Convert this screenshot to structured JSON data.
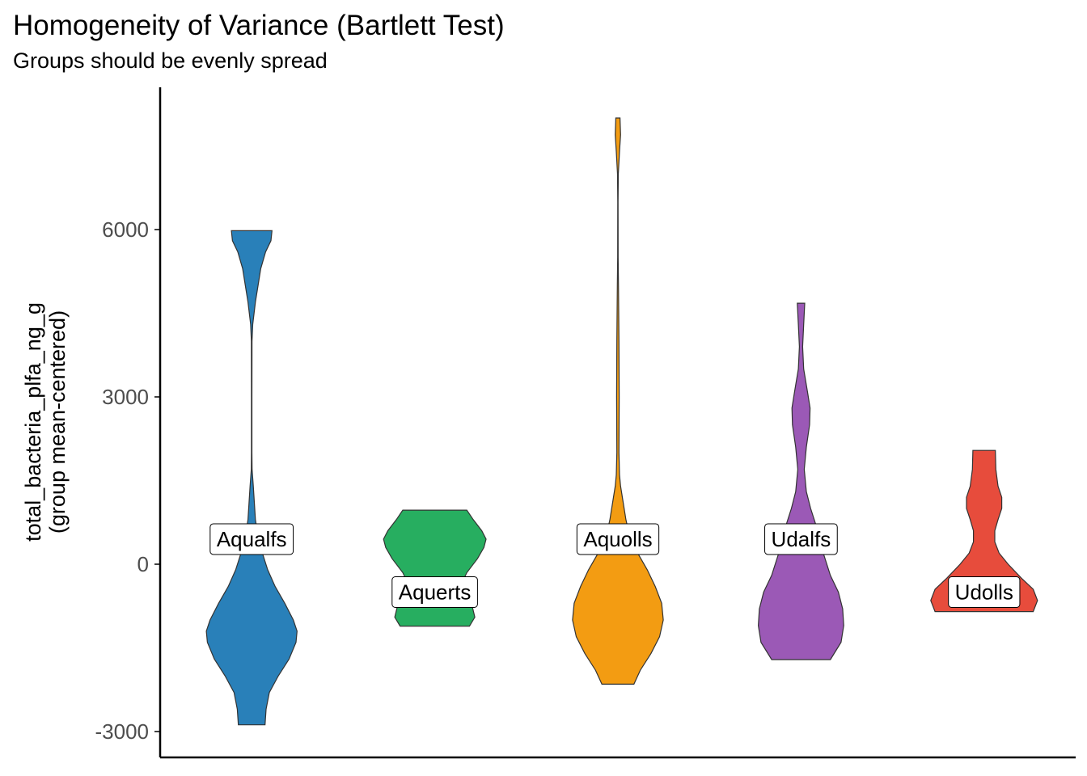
{
  "chart_data": {
    "type": "violin",
    "title": "Homogeneity of Variance (Bartlett Test)",
    "subtitle": "Groups should be evenly spread",
    "ylabel_line1": "total_bacteria_plfa_ng_g",
    "ylabel_line2": "(group mean-centered)",
    "xlabel": "",
    "ylim": [
      -3300,
      8700
    ],
    "yticks": [
      -3000,
      0,
      3000,
      6000
    ],
    "ytick_labels": [
      "-3000",
      "0",
      "3000",
      "6000"
    ],
    "grid": false,
    "legend": "none",
    "groups": [
      {
        "label": "Aqualfs",
        "color": "#2980b9",
        "label_y": 450,
        "min": -2880,
        "max": 5980,
        "density": [
          [
            -2880,
            0.25
          ],
          [
            -2600,
            0.27
          ],
          [
            -2300,
            0.33
          ],
          [
            -2000,
            0.5
          ],
          [
            -1700,
            0.7
          ],
          [
            -1400,
            0.83
          ],
          [
            -1200,
            0.85
          ],
          [
            -1000,
            0.78
          ],
          [
            -700,
            0.62
          ],
          [
            -400,
            0.44
          ],
          [
            -100,
            0.3
          ],
          [
            200,
            0.2
          ],
          [
            500,
            0.12
          ],
          [
            800,
            0.07
          ],
          [
            1100,
            0.05
          ],
          [
            1400,
            0.03
          ],
          [
            1700,
            0.008
          ],
          [
            2000,
            0.004
          ],
          [
            3000,
            0.004
          ],
          [
            4000,
            0.006
          ],
          [
            4300,
            0.02
          ],
          [
            4700,
            0.07
          ],
          [
            5000,
            0.12
          ],
          [
            5300,
            0.17
          ],
          [
            5600,
            0.26
          ],
          [
            5800,
            0.36
          ],
          [
            5980,
            0.38
          ]
        ]
      },
      {
        "label": "Aquerts",
        "color": "#27ae60",
        "label_y": -500,
        "min": -1110,
        "max": 970,
        "density": [
          [
            -1110,
            0.65
          ],
          [
            -950,
            0.75
          ],
          [
            -750,
            0.7
          ],
          [
            -550,
            0.55
          ],
          [
            -350,
            0.5
          ],
          [
            -150,
            0.6
          ],
          [
            100,
            0.8
          ],
          [
            300,
            0.92
          ],
          [
            450,
            0.96
          ],
          [
            600,
            0.88
          ],
          [
            800,
            0.72
          ],
          [
            970,
            0.6
          ]
        ]
      },
      {
        "label": "Aquolls",
        "color": "#f39c12",
        "label_y": 450,
        "min": -2150,
        "max": 8000,
        "density": [
          [
            -2150,
            0.3
          ],
          [
            -1900,
            0.42
          ],
          [
            -1600,
            0.62
          ],
          [
            -1300,
            0.78
          ],
          [
            -1000,
            0.85
          ],
          [
            -700,
            0.82
          ],
          [
            -400,
            0.7
          ],
          [
            -100,
            0.55
          ],
          [
            200,
            0.37
          ],
          [
            500,
            0.22
          ],
          [
            800,
            0.15
          ],
          [
            1100,
            0.1
          ],
          [
            1400,
            0.05
          ],
          [
            1600,
            0.03
          ],
          [
            2000,
            0.02
          ],
          [
            3000,
            0.025
          ],
          [
            4000,
            0.02
          ],
          [
            5000,
            0.01
          ],
          [
            5500,
            0.004
          ],
          [
            6500,
            0.003
          ],
          [
            7000,
            0.008
          ],
          [
            7400,
            0.03
          ],
          [
            7700,
            0.05
          ],
          [
            8000,
            0.04
          ]
        ]
      },
      {
        "label": "Udalfs",
        "color": "#9b59b6",
        "label_y": 450,
        "min": -1710,
        "max": 4680,
        "density": [
          [
            -1710,
            0.55
          ],
          [
            -1400,
            0.75
          ],
          [
            -1100,
            0.8
          ],
          [
            -800,
            0.78
          ],
          [
            -500,
            0.7
          ],
          [
            -200,
            0.55
          ],
          [
            100,
            0.45
          ],
          [
            400,
            0.35
          ],
          [
            700,
            0.28
          ],
          [
            1000,
            0.18
          ],
          [
            1300,
            0.1
          ],
          [
            1700,
            0.06
          ],
          [
            2100,
            0.1
          ],
          [
            2500,
            0.16
          ],
          [
            2800,
            0.17
          ],
          [
            3100,
            0.12
          ],
          [
            3500,
            0.05
          ],
          [
            3900,
            0.03
          ],
          [
            4300,
            0.05
          ],
          [
            4680,
            0.07
          ]
        ]
      },
      {
        "label": "Udolls",
        "color": "#e74c3c",
        "label_y": -500,
        "min": -850,
        "max": 2040,
        "density": [
          [
            -850,
            0.92
          ],
          [
            -650,
            1.0
          ],
          [
            -450,
            0.92
          ],
          [
            -250,
            0.7
          ],
          [
            0,
            0.45
          ],
          [
            200,
            0.28
          ],
          [
            400,
            0.2
          ],
          [
            600,
            0.2
          ],
          [
            800,
            0.26
          ],
          [
            1000,
            0.33
          ],
          [
            1200,
            0.33
          ],
          [
            1400,
            0.26
          ],
          [
            1700,
            0.22
          ],
          [
            2040,
            0.21
          ]
        ]
      }
    ]
  }
}
